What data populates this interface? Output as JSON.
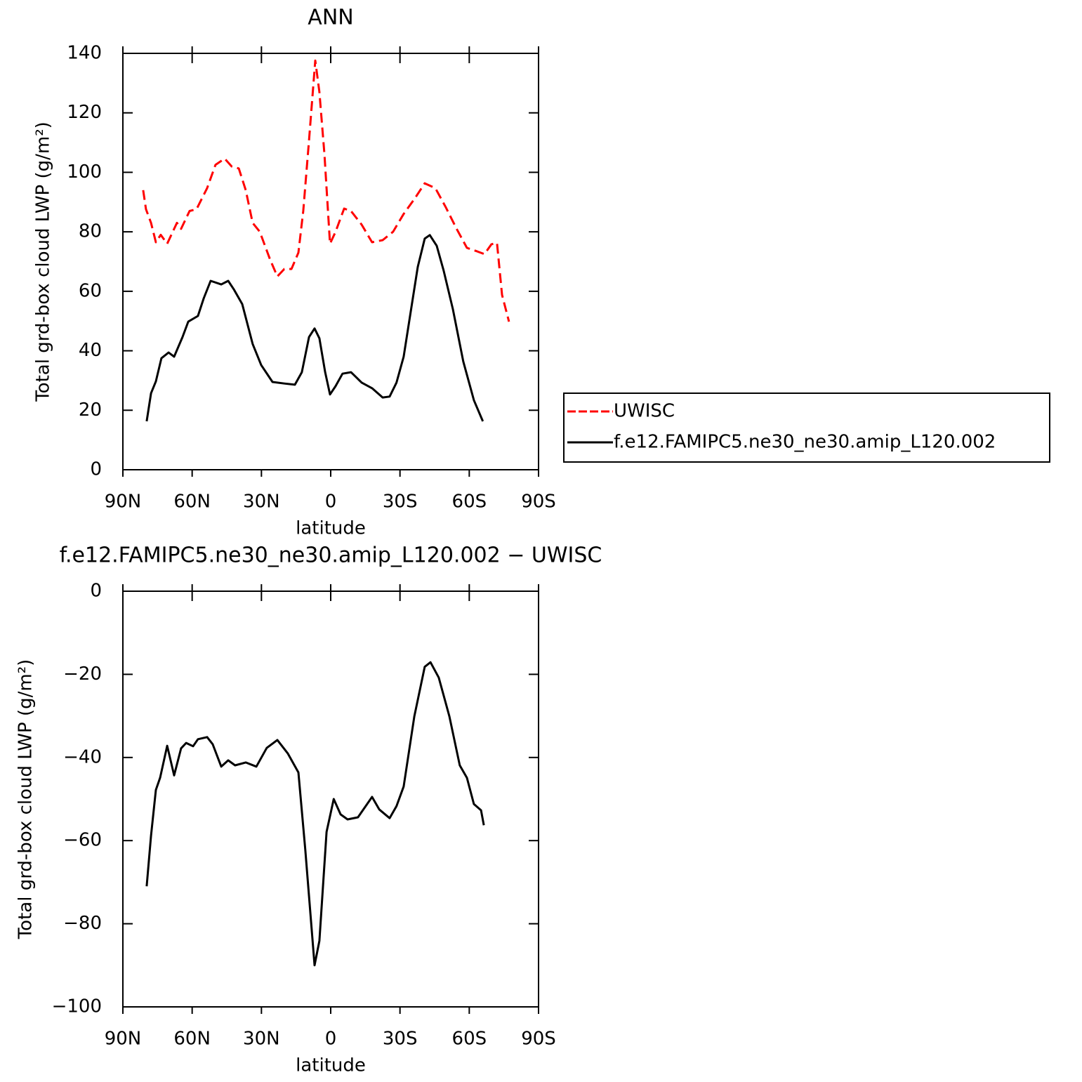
{
  "chart_data": [
    {
      "type": "line",
      "title": "ANN",
      "ylabel": "Total grd-box cloud LWP (g/m²)",
      "xlabel": "latitude",
      "xlim": [
        90,
        -90
      ],
      "xticks": [
        {
          "value": 90,
          "label": "90N"
        },
        {
          "value": 60,
          "label": "60N"
        },
        {
          "value": 30,
          "label": "30N"
        },
        0,
        {
          "value": -30,
          "label": "30S"
        },
        {
          "value": -60,
          "label": "60S"
        },
        {
          "value": -90,
          "label": "90S"
        }
      ],
      "ylim": [
        0,
        140
      ],
      "yticks": [
        0,
        20,
        40,
        60,
        80,
        100,
        120,
        140
      ],
      "legend": "right",
      "series": [
        {
          "name": "UWISC",
          "color": "#ff0000",
          "line_style": "dashed",
          "x": [
            81.2,
            80,
            77.8,
            75.7,
            73.6,
            70.8,
            66.6,
            64.8,
            61.1,
            58.1,
            53.5,
            49.9,
            45.9,
            42.9,
            39.8,
            36.8,
            33.8,
            30.7,
            26.2,
            23.1,
            20.1,
            17.0,
            14.0,
            11.9,
            9.4,
            6.7,
            4.9,
            2.7,
            0.3,
            -2.1,
            -5.8,
            -8.8,
            -13.4,
            -17.9,
            -22.5,
            -27.0,
            -31.6,
            -36.2,
            -40.7,
            -45.3,
            -49.8,
            -54.4,
            -59.0,
            -63.5,
            -66.6,
            -69.6,
            -72.0,
            -74.2,
            -77.2
          ],
          "values": [
            94,
            87.6,
            83,
            76.5,
            79,
            76,
            83,
            81,
            87,
            87.6,
            94.7,
            102.5,
            104.6,
            102,
            101.3,
            94,
            83,
            80,
            70.6,
            65,
            67.5,
            67.5,
            73,
            87,
            110.7,
            137.6,
            127,
            106,
            76,
            80,
            87.8,
            87,
            82.4,
            76.5,
            77.2,
            80,
            86,
            91,
            96.3,
            94.7,
            88.3,
            81.2,
            74.6,
            73.4,
            72.5,
            75.8,
            76.3,
            58.8,
            49.8
          ]
        },
        {
          "name": "f.e12.FAMIPC5.ne30_ne30.amip_L120.002",
          "color": "#000000",
          "line_style": "solid",
          "x": [
            79.7,
            77.8,
            75.7,
            73.3,
            70.2,
            67.8,
            64.2,
            61.7,
            57.5,
            55.0,
            52.0,
            47.4,
            44.4,
            42.0,
            38.3,
            33.8,
            30.1,
            25.2,
            20.1,
            15.5,
            12.5,
            9.4,
            7.0,
            4.9,
            2.4,
            0.3,
            -2.1,
            -5.1,
            -8.8,
            -13.4,
            -17.9,
            -22.5,
            -25.5,
            -28.5,
            -31.6,
            -34.6,
            -37.7,
            -40.7,
            -42.9,
            -45.9,
            -48.9,
            -52.9,
            -57.4,
            -62.0,
            -65.9
          ],
          "values": [
            16.3,
            25.7,
            29.7,
            37.5,
            39.4,
            38,
            44.6,
            49.8,
            51.7,
            57.6,
            63.5,
            62.3,
            63.5,
            60.7,
            55.7,
            42.3,
            35.2,
            29.5,
            29,
            28.6,
            32.8,
            44.6,
            47.5,
            44.2,
            32.8,
            25.3,
            28.1,
            32.3,
            32.8,
            29.3,
            27.4,
            24.3,
            24.6,
            29.3,
            38,
            52.9,
            68.2,
            77.7,
            78.9,
            75.3,
            67,
            54,
            36.4,
            23.4,
            16.3
          ]
        }
      ]
    },
    {
      "type": "line",
      "title": "f.e12.FAMIPC5.ne30_ne30.amip_L120.002 − UWISC",
      "ylabel": "Total grd-box cloud LWP (g/m²)",
      "xlabel": "latitude",
      "xlim": [
        90,
        -90
      ],
      "xticks": [
        {
          "value": 90,
          "label": "90N"
        },
        {
          "value": 60,
          "label": "60N"
        },
        {
          "value": 30,
          "label": "30N"
        },
        0,
        {
          "value": -30,
          "label": "30S"
        },
        {
          "value": -60,
          "label": "60S"
        },
        {
          "value": -90,
          "label": "90S"
        }
      ],
      "ylim": [
        -100,
        0
      ],
      "yticks": [
        0,
        {
          "value": -20,
          "label": "−20"
        },
        {
          "value": -40,
          "label": "−40"
        },
        {
          "value": -60,
          "label": "−60"
        },
        {
          "value": -80,
          "label": "−80"
        },
        {
          "value": -100,
          "label": "−100"
        }
      ],
      "series": [
        {
          "color": "#000000",
          "line_style": "solid",
          "x": [
            79.7,
            77.8,
            75.7,
            73.9,
            70.8,
            67.8,
            64.8,
            62.6,
            59.6,
            57.5,
            53.5,
            51.1,
            47.4,
            44.4,
            41.4,
            36.8,
            32.2,
            27.7,
            23.1,
            18.6,
            14.0,
            11.0,
            7.0,
            4.9,
            1.8,
            -1.3,
            -4.3,
            -7.3,
            -11.8,
            -17.9,
            -21.0,
            -25.5,
            -28.5,
            -31.6,
            -36.2,
            -40.7,
            -43.2,
            -46.8,
            -51.4,
            -55.9,
            -59.0,
            -62.0,
            -65.1,
            -66.3
          ],
          "values": [
            -71,
            -58.8,
            -47.8,
            -44.9,
            -37.2,
            -44.3,
            -37.8,
            -36.5,
            -37.3,
            -35.6,
            -35.1,
            -36.8,
            -42.2,
            -40.7,
            -41.9,
            -41.2,
            -42.2,
            -37.7,
            -35.8,
            -39,
            -43.6,
            -62.2,
            -90,
            -84.1,
            -57.9,
            -50,
            -53.7,
            -54.9,
            -54.4,
            -49.5,
            -52.5,
            -54.6,
            -51.7,
            -47,
            -30.1,
            -18.2,
            -17.1,
            -20.8,
            -30.1,
            -41.9,
            -44.9,
            -51.2,
            -52.7,
            -56.3
          ]
        }
      ]
    }
  ]
}
